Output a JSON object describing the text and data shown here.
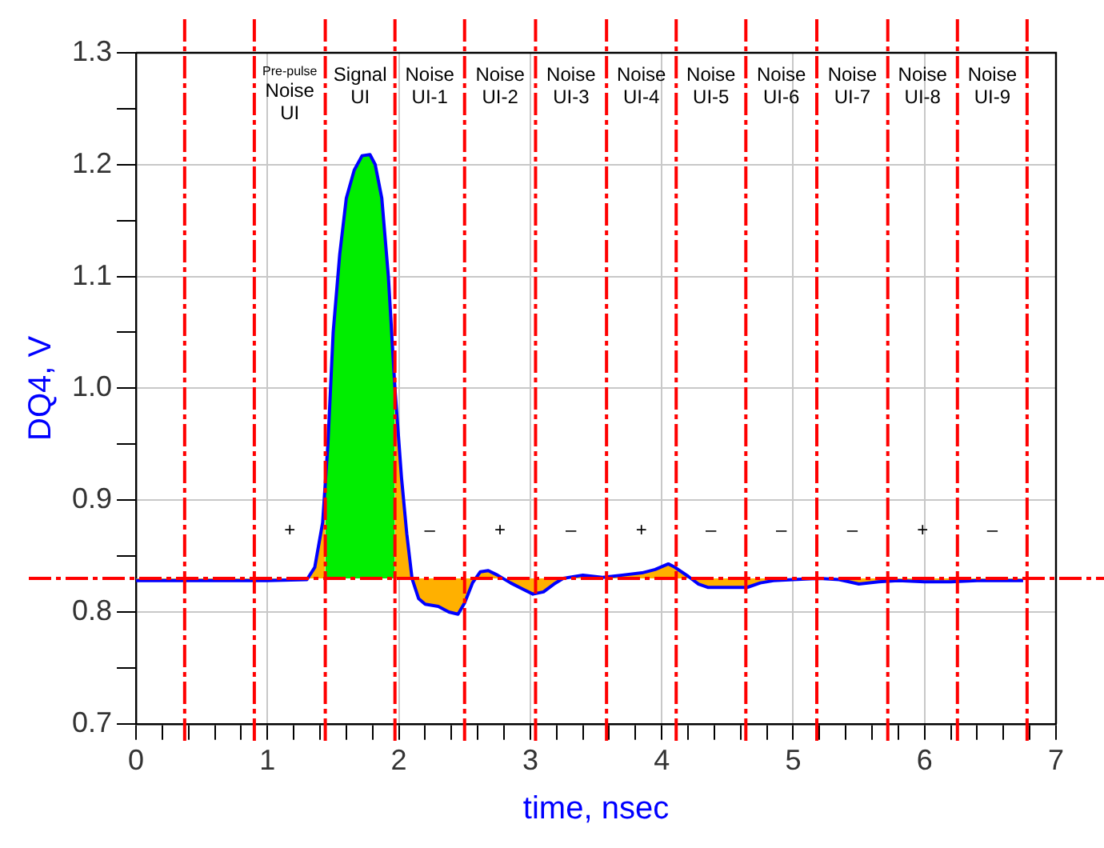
{
  "chart_data": {
    "type": "area",
    "xlabel": "time, nsec",
    "ylabel": "DQ4, V",
    "series": [
      {
        "color": "#0000ff",
        "type": "line",
        "x": [
          0,
          0.5,
          1.0,
          1.3,
          1.36,
          1.42,
          1.44,
          1.46,
          1.5,
          1.55,
          1.6,
          1.66,
          1.72,
          1.78,
          1.82,
          1.87,
          1.92,
          1.97,
          2.02,
          2.06,
          2.1,
          2.15,
          2.2,
          2.3,
          2.38,
          2.45,
          2.5,
          2.56,
          2.62,
          2.68,
          2.75,
          2.85,
          2.95,
          3.02,
          3.1,
          3.18,
          3.25,
          3.4,
          3.55,
          3.7,
          3.85,
          3.95,
          4.05,
          4.1,
          4.2,
          4.28,
          4.35,
          4.5,
          4.65,
          4.75,
          4.85,
          5.0,
          5.2,
          5.35,
          5.5,
          5.65,
          5.8,
          6.0,
          6.2,
          6.4,
          6.6,
          6.75
        ],
        "values": [
          0.828,
          0.828,
          0.828,
          0.829,
          0.84,
          0.88,
          0.915,
          0.95,
          1.05,
          1.12,
          1.17,
          1.195,
          1.208,
          1.209,
          1.2,
          1.17,
          1.1,
          1.0,
          0.92,
          0.87,
          0.83,
          0.812,
          0.807,
          0.805,
          0.8,
          0.798,
          0.808,
          0.826,
          0.836,
          0.837,
          0.833,
          0.826,
          0.82,
          0.816,
          0.818,
          0.825,
          0.83,
          0.833,
          0.831,
          0.833,
          0.835,
          0.838,
          0.843,
          0.84,
          0.832,
          0.825,
          0.822,
          0.822,
          0.822,
          0.826,
          0.828,
          0.829,
          0.83,
          0.829,
          0.825,
          0.827,
          0.828,
          0.827,
          0.827,
          0.828,
          0.828,
          0.828
        ]
      },
      {
        "color": "#00ee00",
        "x": [
          1.44,
          1.46,
          1.5,
          1.55,
          1.6,
          1.66,
          1.72,
          1.78,
          1.82,
          1.87,
          1.92,
          1.97
        ],
        "values": [
          0.915,
          0.95,
          1.05,
          1.12,
          1.17,
          1.195,
          1.208,
          1.209,
          1.2,
          1.17,
          1.1,
          1.0
        ]
      },
      {
        "color": "#ffb000",
        "x": [
          0,
          0.5,
          1.0,
          1.3,
          1.36,
          1.42,
          1.44,
          1.46,
          1.5,
          1.55,
          1.6,
          1.66,
          1.72,
          1.78,
          1.82,
          1.87,
          1.92,
          1.97,
          2.02,
          2.06,
          2.1,
          2.15,
          2.2,
          2.3,
          2.38,
          2.45,
          2.5,
          2.56,
          2.62,
          2.68,
          2.75,
          2.85,
          2.95,
          3.02,
          3.1,
          3.18,
          3.25,
          3.4,
          3.55,
          3.7,
          3.85,
          3.95,
          4.05,
          4.1,
          4.2,
          4.28,
          4.35,
          4.5,
          4.65,
          4.75,
          4.85,
          5.0,
          5.2,
          5.35,
          5.5,
          5.65,
          5.8,
          6.0,
          6.2,
          6.4,
          6.6,
          6.75
        ],
        "values": [
          0.828,
          0.828,
          0.828,
          0.829,
          0.84,
          0.88,
          0.915,
          null,
          null,
          null,
          null,
          null,
          null,
          null,
          null,
          null,
          null,
          1.0,
          0.92,
          0.87,
          0.83,
          0.812,
          0.807,
          0.805,
          0.8,
          0.798,
          0.808,
          0.826,
          0.836,
          0.837,
          0.833,
          0.826,
          0.82,
          0.816,
          0.818,
          0.825,
          0.83,
          0.833,
          0.831,
          0.833,
          0.835,
          0.838,
          0.843,
          0.84,
          0.832,
          0.825,
          0.822,
          0.822,
          0.822,
          0.826,
          0.828,
          0.829,
          0.83,
          0.829,
          0.825,
          0.827,
          0.828,
          0.827,
          0.827,
          0.828,
          0.828,
          0.828
        ]
      }
    ],
    "xlim": [
      0,
      7
    ],
    "xticks": [
      0,
      {
        "value": 0.2,
        "label": null
      },
      {
        "value": 0.4,
        "label": null
      },
      {
        "value": 0.6,
        "label": null
      },
      {
        "value": 0.8,
        "label": null
      },
      1,
      {
        "value": 1.2,
        "label": null
      },
      {
        "value": 1.4,
        "label": null
      },
      {
        "value": 1.6,
        "label": null
      },
      {
        "value": 1.8,
        "label": null
      },
      2,
      {
        "value": 2.2,
        "label": null
      },
      {
        "value": 2.4,
        "label": null
      },
      {
        "value": 2.6,
        "label": null
      },
      {
        "value": 2.8,
        "label": null
      },
      3,
      {
        "value": 3.2,
        "label": null
      },
      {
        "value": 3.4,
        "label": null
      },
      {
        "value": 3.6,
        "label": null
      },
      {
        "value": 3.8,
        "label": null
      },
      4,
      {
        "value": 4.2,
        "label": null
      },
      {
        "value": 4.4,
        "label": null
      },
      {
        "value": 4.6,
        "label": null
      },
      {
        "value": 4.8,
        "label": null
      },
      5,
      {
        "value": 5.2,
        "label": null
      },
      {
        "value": 5.4,
        "label": null
      },
      {
        "value": 5.6,
        "label": null
      },
      {
        "value": 5.8,
        "label": null
      },
      6,
      {
        "value": 6.2,
        "label": null
      },
      {
        "value": 6.4,
        "label": null
      },
      {
        "value": 6.6,
        "label": null
      },
      {
        "value": 6.8,
        "label": null
      },
      7
    ],
    "ylim": [
      0.7,
      1.3
    ],
    "yticks": [
      0.7,
      {
        "value": 0.75,
        "label": null
      },
      0.8,
      {
        "value": 0.85,
        "label": null
      },
      0.9,
      {
        "value": 0.95,
        "label": null
      },
      {
        "value": 1.0,
        "label": "1.0"
      },
      {
        "value": 1.05,
        "label": null
      },
      1.1,
      {
        "value": 1.15,
        "label": null
      },
      1.2,
      {
        "value": 1.25,
        "label": null
      },
      1.3
    ],
    "grid": true,
    "legend": false,
    "marker": "none",
    "line_style": "solid",
    "ref_lines": [
      {
        "axis": "y",
        "value": 0.83,
        "color": "#ff0000",
        "line_style": "dashed"
      },
      {
        "axis": "x",
        "value": 0.37,
        "color": "#ff0000",
        "line_style": "dashed"
      },
      {
        "axis": "x",
        "value": 0.9,
        "color": "#ff0000",
        "line_style": "dashed"
      },
      {
        "axis": "x",
        "value": 1.44,
        "color": "#ff0000",
        "line_style": "dashed"
      },
      {
        "axis": "x",
        "value": 1.97,
        "color": "#ff0000",
        "line_style": "dashed"
      },
      {
        "axis": "x",
        "value": 2.5,
        "color": "#ff0000",
        "line_style": "dashed"
      },
      {
        "axis": "x",
        "value": 3.04,
        "color": "#ff0000",
        "line_style": "dashed"
      },
      {
        "axis": "x",
        "value": 3.58,
        "color": "#ff0000",
        "line_style": "dashed"
      },
      {
        "axis": "x",
        "value": 4.11,
        "color": "#ff0000",
        "line_style": "dashed"
      },
      {
        "axis": "x",
        "value": 4.64,
        "color": "#ff0000",
        "line_style": "dashed"
      },
      {
        "axis": "x",
        "value": 5.18,
        "color": "#ff0000",
        "line_style": "dashed"
      },
      {
        "axis": "x",
        "value": 5.72,
        "color": "#ff0000",
        "line_style": "dashed"
      },
      {
        "axis": "x",
        "value": 6.25,
        "color": "#ff0000",
        "line_style": "dashed"
      },
      {
        "axis": "x",
        "value": 6.78,
        "color": "#ff0000",
        "line_style": "dashed"
      }
    ],
    "annotations": [
      "Pre-pulse\nNoise\nUI",
      "Signal\nUI",
      "Noise\nUI-1",
      "Noise\nUI-2",
      "Noise\nUI-3",
      "Noise\nUI-4",
      "Noise\nUI-5",
      "Noise\nUI-6",
      "Noise\nUI-7",
      "Noise\nUI-8",
      "Noise\nUI-9",
      "+",
      "–",
      "+",
      "–",
      "+",
      "–",
      "–",
      "–",
      "+",
      "–"
    ]
  }
}
